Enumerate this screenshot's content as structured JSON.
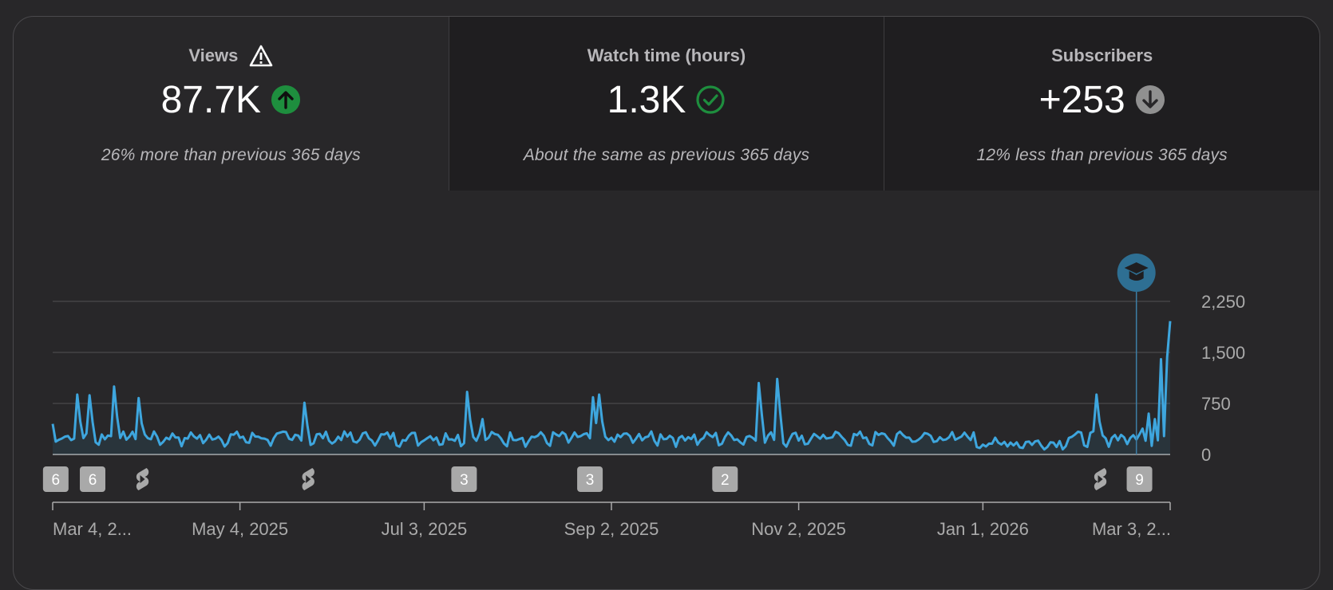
{
  "metrics": [
    {
      "title": "Views",
      "title_icon": "warning-icon",
      "value": "87.7K",
      "trend_icon": "arrow-up-circle-icon",
      "trend_color": "#1e8e3e",
      "note": "26% more than previous 365 days",
      "selected": true
    },
    {
      "title": "Watch time (hours)",
      "title_icon": "",
      "value": "1.3K",
      "trend_icon": "check-circle-icon",
      "trend_color": "#1e8e3e",
      "note": "About the same as previous 365 days",
      "selected": false
    },
    {
      "title": "Subscribers",
      "title_icon": "",
      "value": "+253",
      "trend_icon": "arrow-down-circle-icon",
      "trend_color": "#909090",
      "note": "12% less than previous 365 days",
      "selected": false
    }
  ],
  "chart_data": {
    "type": "line",
    "x_start": "Mar 4, 2025",
    "x_end": "Mar 3, 2026",
    "ylim": [
      0,
      2250
    ],
    "yticks": [
      "2,250",
      "1,500",
      "750",
      "0"
    ],
    "ytick_values": [
      2250,
      1500,
      750,
      0
    ],
    "xticks": [
      "Mar 4, 2...",
      "May 4, 2025",
      "Jul 3, 2025",
      "Sep 2, 2025",
      "Nov 2, 2025",
      "Jan 1, 2026",
      "Mar 3, 2..."
    ],
    "xtick_days": [
      0,
      61,
      121,
      182,
      243,
      303,
      364
    ],
    "line_color": "#3ea6de",
    "grid": true,
    "spikes": [
      [
        0,
        450
      ],
      [
        8,
        880
      ],
      [
        12,
        870
      ],
      [
        20,
        1000
      ],
      [
        28,
        830
      ],
      [
        82,
        760
      ],
      [
        135,
        920
      ],
      [
        140,
        520
      ],
      [
        176,
        840
      ],
      [
        178,
        880
      ],
      [
        230,
        1050
      ],
      [
        236,
        1110
      ],
      [
        340,
        880
      ],
      [
        355,
        380
      ],
      [
        357,
        600
      ],
      [
        359,
        520
      ],
      [
        361,
        1400
      ],
      [
        363,
        1430
      ],
      [
        364,
        1960
      ]
    ],
    "marker_day": 353,
    "marker_icon": "graduation-cap-icon",
    "markers": [
      {
        "day": 1,
        "kind": "count",
        "label": "6"
      },
      {
        "day": 13,
        "kind": "count",
        "label": "6"
      },
      {
        "day": 29,
        "kind": "shorts",
        "label": ""
      },
      {
        "day": 83,
        "kind": "shorts",
        "label": ""
      },
      {
        "day": 134,
        "kind": "count",
        "label": "3"
      },
      {
        "day": 175,
        "kind": "count",
        "label": "3"
      },
      {
        "day": 219,
        "kind": "count",
        "label": "2"
      },
      {
        "day": 341,
        "kind": "shorts",
        "label": ""
      },
      {
        "day": 354,
        "kind": "count",
        "label": "9"
      }
    ]
  }
}
